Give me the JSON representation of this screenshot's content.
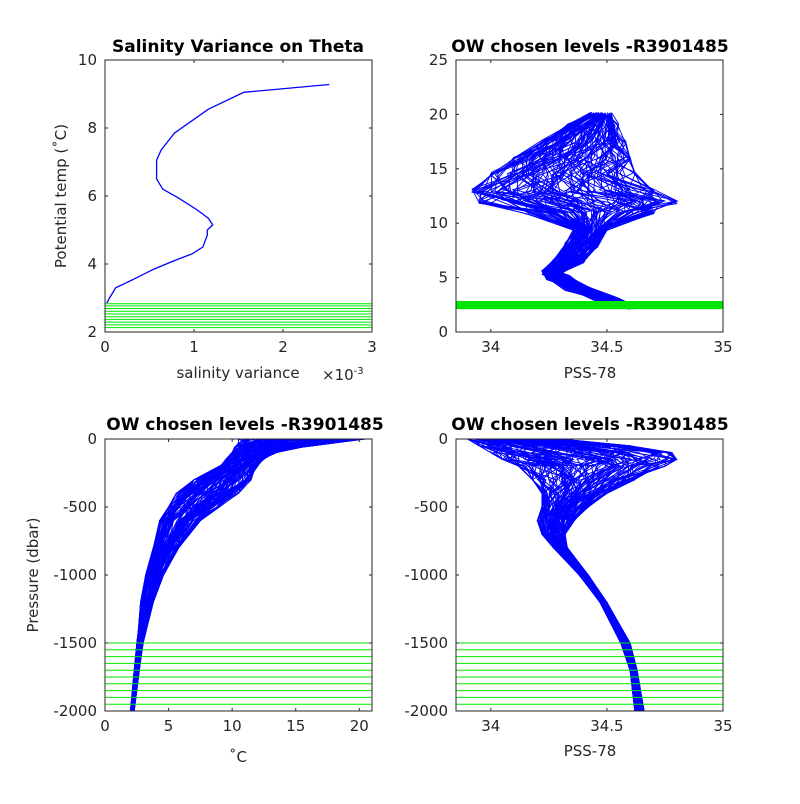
{
  "figure": {
    "background": "#ffffff"
  },
  "chart_data": [
    {
      "type": "line",
      "title": "Salinity Variance on Theta",
      "xlabel": "salinity variance",
      "x_exponent_label": "×10",
      "x_exponent_power": "-3",
      "ylabel": "Potential temp (˚C)",
      "xlim": [
        0,
        0.003
      ],
      "ylim": [
        2,
        10
      ],
      "xticks": [
        0,
        0.001,
        0.002,
        0.003
      ],
      "xtick_labels": [
        "0",
        "1",
        "2",
        "3"
      ],
      "yticks": [
        2,
        4,
        6,
        8,
        10
      ],
      "ytick_labels": [
        "2",
        "4",
        "6",
        "8",
        "10"
      ],
      "grid": false,
      "series": [
        {
          "color": "#0000ff",
          "x": [
            0.00252,
            0.00156,
            0.00116,
            0.00078,
            0.00063,
            0.00058,
            0.00058,
            0.00065,
            0.00082,
            0.00103,
            0.00116,
            0.00121,
            0.00115,
            0.00115,
            0.0011,
            0.00098,
            0.00078,
            0.00055,
            0.00032,
            0.00012,
            5e-05,
            2e-05
          ],
          "y": [
            9.28,
            9.05,
            8.55,
            7.85,
            7.35,
            7.05,
            6.5,
            6.2,
            5.95,
            5.6,
            5.35,
            5.15,
            5.0,
            4.85,
            4.5,
            4.3,
            4.1,
            3.85,
            3.55,
            3.3,
            3.0,
            2.85
          ]
        }
      ],
      "chosen_levels": {
        "color": "#00e600",
        "y": [
          2.13,
          2.21,
          2.29,
          2.37,
          2.45,
          2.53,
          2.61,
          2.69,
          2.77,
          2.83
        ]
      }
    },
    {
      "type": "line",
      "title": "OW chosen levels -R3901485",
      "xlabel": "PSS-78",
      "ylabel": "",
      "xlim": [
        33.85,
        35.0
      ],
      "ylim": [
        0,
        25
      ],
      "xticks": [
        34.0,
        34.5,
        35.0
      ],
      "xtick_labels": [
        "34",
        "34.5",
        "35"
      ],
      "yticks": [
        0,
        5,
        10,
        15,
        20,
        25
      ],
      "ytick_labels": [
        "0",
        "5",
        "10",
        "15",
        "20",
        "25"
      ],
      "grid": false,
      "profile_count": 120,
      "profile_envelope": {
        "color": "#0000ff",
        "theta": [
          2.3,
          3.0,
          4.0,
          5.0,
          5.5,
          6.5,
          8.0,
          9.5,
          11.0,
          12.0,
          13.0,
          14.5,
          16.0,
          17.5,
          19.0,
          20.0
        ],
        "salinity_min": [
          34.58,
          34.45,
          34.32,
          34.24,
          34.22,
          34.27,
          34.32,
          34.36,
          34.16,
          33.95,
          33.92,
          34.0,
          34.1,
          34.22,
          34.33,
          34.43
        ],
        "salinity_max": [
          34.62,
          34.55,
          34.42,
          34.34,
          34.3,
          34.4,
          34.46,
          34.5,
          34.7,
          34.8,
          34.7,
          34.62,
          34.6,
          34.58,
          34.55,
          34.52
        ]
      },
      "chosen_levels": {
        "color": "#00e600",
        "theta_range": [
          2.1,
          2.85
        ]
      }
    },
    {
      "type": "line",
      "title": "OW chosen levels -R3901485",
      "xlabel": "˚C",
      "ylabel": "Pressure (dbar)",
      "xlim": [
        0,
        21
      ],
      "ylim": [
        -2000,
        0
      ],
      "xticks": [
        0,
        5,
        10,
        15,
        20
      ],
      "xtick_labels": [
        "0",
        "5",
        "10",
        "15",
        "20"
      ],
      "yticks": [
        -2000,
        -1500,
        -1000,
        -500,
        0
      ],
      "ytick_labels": [
        "-2000",
        "-1500",
        "-1000",
        "-500",
        "0"
      ],
      "grid": false,
      "profile_count": 120,
      "profile_envelope": {
        "color": "#0000ff",
        "pressure": [
          0,
          -30,
          -60,
          -100,
          -150,
          -200,
          -300,
          -400,
          -500,
          -600,
          -800,
          -1000,
          -1200,
          -1500,
          -1700,
          -2000
        ],
        "temperature_min": [
          10.5,
          10.5,
          10.2,
          10.0,
          9.5,
          9.0,
          7.0,
          5.6,
          5.0,
          4.3,
          3.8,
          3.2,
          2.8,
          2.5,
          2.3,
          2.0
        ],
        "temperature_max": [
          20.5,
          18.0,
          15.5,
          13.5,
          12.5,
          12.0,
          11.5,
          10.5,
          9.0,
          7.5,
          5.8,
          4.6,
          3.8,
          3.0,
          2.7,
          2.3
        ]
      },
      "chosen_levels": {
        "color": "#00e600",
        "pressure": [
          -1500,
          -1550,
          -1600,
          -1650,
          -1700,
          -1750,
          -1800,
          -1850,
          -1900,
          -1950
        ]
      }
    },
    {
      "type": "line",
      "title": "OW chosen levels -R3901485",
      "xlabel": "PSS-78",
      "ylabel": "",
      "xlim": [
        33.85,
        35.0
      ],
      "ylim": [
        -2000,
        0
      ],
      "xticks": [
        34.0,
        34.5,
        35.0
      ],
      "xtick_labels": [
        "34",
        "34.5",
        "35"
      ],
      "yticks": [
        -2000,
        -1500,
        -1000,
        -500,
        0
      ],
      "ytick_labels": [
        "-2000",
        "-1500",
        "-1000",
        "-500",
        "0"
      ],
      "grid": false,
      "profile_count": 120,
      "profile_envelope": {
        "color": "#0000ff",
        "pressure": [
          0,
          -50,
          -100,
          -150,
          -200,
          -300,
          -400,
          -500,
          -600,
          -700,
          -800,
          -1000,
          -1200,
          -1500,
          -1700,
          -2000
        ],
        "salinity_min": [
          33.9,
          33.95,
          34.0,
          34.05,
          34.12,
          34.18,
          34.22,
          34.22,
          34.2,
          34.22,
          34.27,
          34.38,
          34.47,
          34.56,
          34.6,
          34.62
        ],
        "salinity_max": [
          34.3,
          34.6,
          34.78,
          34.8,
          34.75,
          34.62,
          34.5,
          34.42,
          34.36,
          34.32,
          34.33,
          34.42,
          34.5,
          34.6,
          34.63,
          34.66
        ]
      },
      "chosen_levels": {
        "color": "#00e600",
        "pressure": [
          -1500,
          -1550,
          -1600,
          -1650,
          -1700,
          -1750,
          -1800,
          -1850,
          -1900,
          -1950
        ]
      }
    }
  ]
}
